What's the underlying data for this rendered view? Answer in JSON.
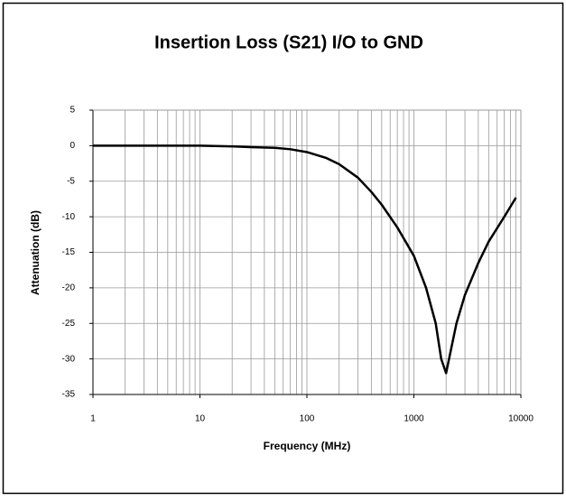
{
  "chart_data": {
    "type": "line",
    "title": "Insertion Loss (S21) I/O to GND",
    "x_label": "Frequency (MHz)",
    "y_label": "Attenuation (dB)",
    "x_scale": "log",
    "grid": true,
    "xlim": [
      1,
      10000
    ],
    "xticks": [
      1,
      10,
      100,
      1000,
      10000
    ],
    "x_minor_ticks": [
      2,
      3,
      4,
      5,
      6,
      7,
      8,
      9,
      20,
      30,
      40,
      50,
      60,
      70,
      80,
      90,
      200,
      300,
      400,
      500,
      600,
      700,
      800,
      900,
      2000,
      3000,
      4000,
      5000,
      6000,
      7000,
      8000,
      9000
    ],
    "ylim": [
      -35,
      5
    ],
    "yticks": [
      -35,
      -30,
      -25,
      -20,
      -15,
      -10,
      -5,
      0,
      5
    ],
    "series": [
      {
        "name": "S21",
        "color": "#000000",
        "x": [
          1,
          10,
          20,
          30,
          50,
          70,
          100,
          150,
          200,
          300,
          400,
          500,
          700,
          1000,
          1300,
          1600,
          1800,
          2000,
          2200,
          2500,
          3000,
          4000,
          5000,
          7000,
          9000
        ],
        "values": [
          0,
          0,
          -0.1,
          -0.2,
          -0.3,
          -0.5,
          -0.9,
          -1.7,
          -2.6,
          -4.5,
          -6.5,
          -8.3,
          -11.5,
          -15.5,
          -20,
          -25,
          -30,
          -32,
          -29,
          -25,
          -21,
          -16.5,
          -13.5,
          -10,
          -7.3
        ]
      }
    ]
  }
}
